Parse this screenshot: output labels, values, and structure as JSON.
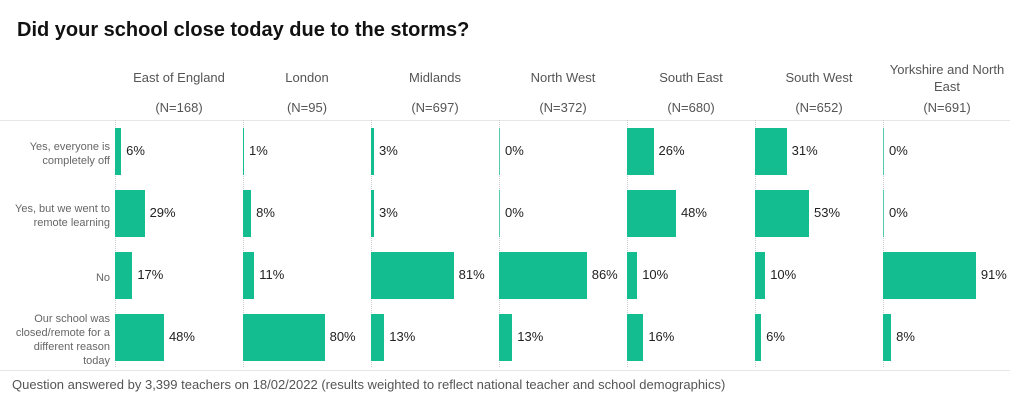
{
  "chart_data": {
    "type": "bar",
    "title": "Did your school close today due to the storms?",
    "orientation": "horizontal",
    "xlim": [
      0,
      100
    ],
    "categories": [
      "Yes, everyone is completely off",
      "Yes, but we went to remote learning",
      "No",
      "Our school was closed/remote for a different reason today"
    ],
    "panels": [
      {
        "name": "East of England",
        "n": "(N=168)",
        "values": [
          6,
          29,
          17,
          48
        ]
      },
      {
        "name": "London",
        "n": "(N=95)",
        "values": [
          1,
          8,
          11,
          80
        ]
      },
      {
        "name": "Midlands",
        "n": "(N=697)",
        "values": [
          3,
          3,
          81,
          13
        ]
      },
      {
        "name": "North West",
        "n": "(N=372)",
        "values": [
          0,
          0,
          86,
          13
        ]
      },
      {
        "name": "South East",
        "n": "(N=680)",
        "values": [
          26,
          48,
          10,
          16
        ]
      },
      {
        "name": "South West",
        "n": "(N=652)",
        "values": [
          31,
          53,
          10,
          6
        ]
      },
      {
        "name": "Yorkshire and North East",
        "n": "(N=691)",
        "values": [
          0,
          0,
          91,
          8
        ]
      }
    ],
    "color": "#14bd8f",
    "footnote": "Question answered by 3,399 teachers on 18/02/2022 (results weighted to reflect national teacher and school demographics)"
  }
}
